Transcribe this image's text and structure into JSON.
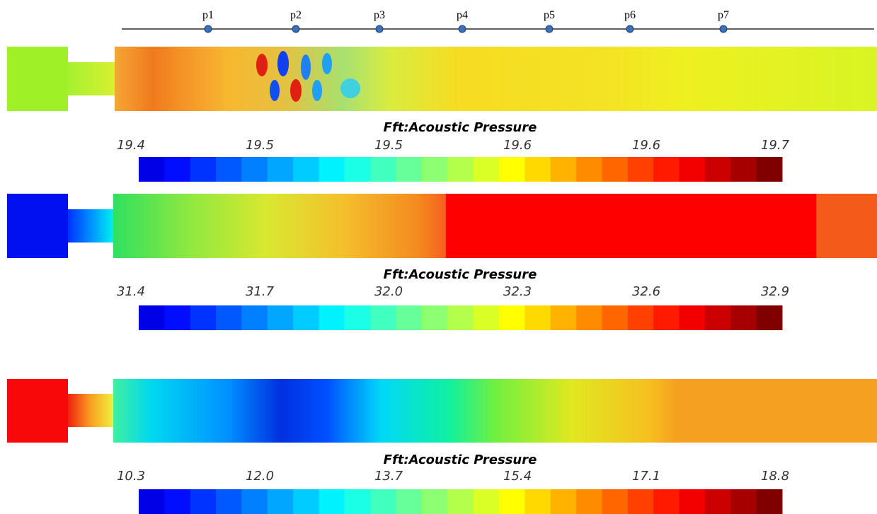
{
  "probes": [
    "p1",
    "p2",
    "p3",
    "p4",
    "p5",
    "p6",
    "p7"
  ],
  "panels": [
    {
      "colorbar_title": "Fft:Acoustic Pressure",
      "colorbar_labels": [
        "19.4",
        "19.5",
        "19.5",
        "19.6",
        "19.6",
        "19.7"
      ]
    },
    {
      "colorbar_title": "Fft:Acoustic Pressure",
      "colorbar_labels": [
        "31.4",
        "31.7",
        "32.0",
        "32.3",
        "32.6",
        "32.9"
      ]
    },
    {
      "colorbar_title": "Fft:Acoustic Pressure",
      "colorbar_labels": [
        "10.3",
        "12.0",
        "13.7",
        "15.4",
        "17.1",
        "18.8"
      ]
    }
  ]
}
